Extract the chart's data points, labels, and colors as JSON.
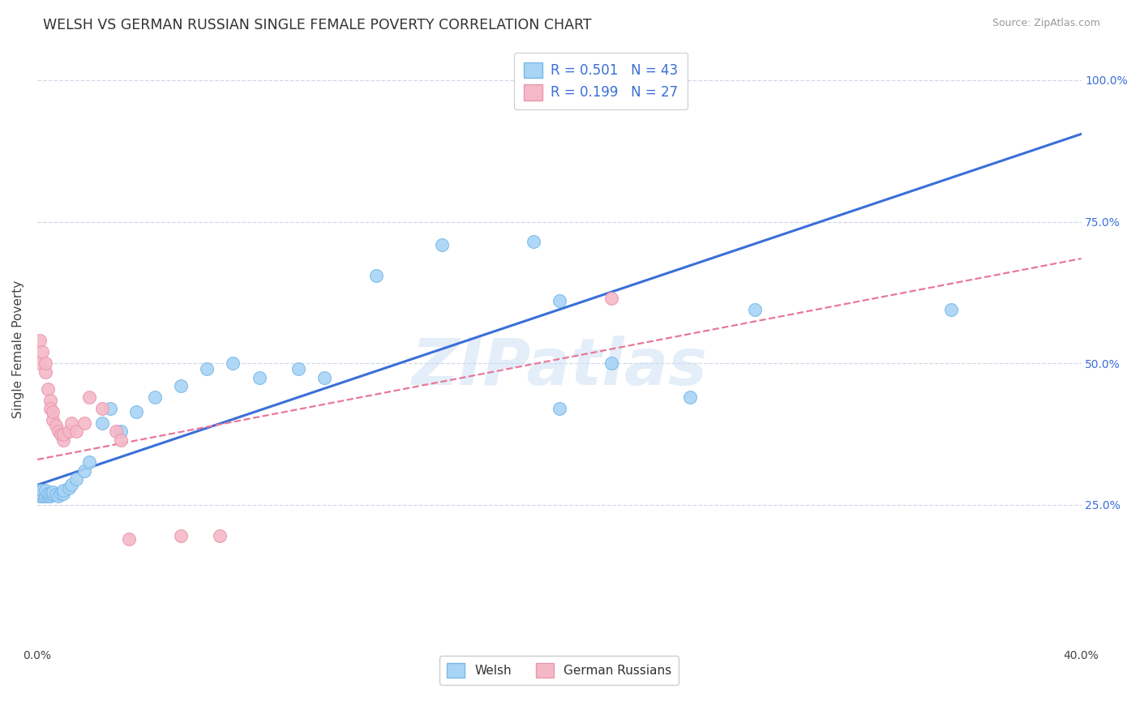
{
  "title": "WELSH VS GERMAN RUSSIAN SINGLE FEMALE POVERTY CORRELATION CHART",
  "source": "Source: ZipAtlas.com",
  "ylabel": "Single Female Poverty",
  "watermark": "ZIPatlas",
  "welsh_color": "#a8d4f5",
  "german_color": "#f5b8c8",
  "welsh_line_color": "#3a6fd8",
  "german_line_color": "#e87898",
  "R_welsh": 0.501,
  "N_welsh": 43,
  "R_german": 0.199,
  "N_german": 27,
  "xlim": [
    0.0,
    0.4
  ],
  "ylim": [
    0.0,
    1.05
  ],
  "bg_color": "#ffffff",
  "grid_color": "#d0d8e8",
  "welsh_x": [
    0.001,
    0.001,
    0.002,
    0.002,
    0.002,
    0.003,
    0.003,
    0.004,
    0.004,
    0.005,
    0.005,
    0.006,
    0.006,
    0.007,
    0.008,
    0.009,
    0.01,
    0.01,
    0.012,
    0.013,
    0.015,
    0.018,
    0.02,
    0.025,
    0.028,
    0.032,
    0.038,
    0.045,
    0.055,
    0.065,
    0.075,
    0.085,
    0.1,
    0.11,
    0.13,
    0.155,
    0.19,
    0.2,
    0.22,
    0.25,
    0.275,
    0.2,
    0.35
  ],
  "welsh_y": [
    0.265,
    0.275,
    0.265,
    0.27,
    0.275,
    0.265,
    0.275,
    0.265,
    0.27,
    0.265,
    0.27,
    0.268,
    0.272,
    0.268,
    0.265,
    0.27,
    0.27,
    0.275,
    0.28,
    0.285,
    0.295,
    0.31,
    0.325,
    0.395,
    0.42,
    0.38,
    0.415,
    0.44,
    0.46,
    0.49,
    0.5,
    0.475,
    0.49,
    0.475,
    0.655,
    0.71,
    0.715,
    0.61,
    0.5,
    0.44,
    0.595,
    0.42,
    0.595
  ],
  "german_x": [
    0.001,
    0.001,
    0.002,
    0.003,
    0.003,
    0.004,
    0.005,
    0.005,
    0.006,
    0.006,
    0.007,
    0.008,
    0.009,
    0.01,
    0.01,
    0.012,
    0.013,
    0.015,
    0.018,
    0.02,
    0.025,
    0.03,
    0.032,
    0.035,
    0.055,
    0.07,
    0.22
  ],
  "german_y": [
    0.54,
    0.5,
    0.52,
    0.485,
    0.5,
    0.455,
    0.435,
    0.42,
    0.4,
    0.415,
    0.39,
    0.38,
    0.375,
    0.365,
    0.375,
    0.38,
    0.395,
    0.38,
    0.395,
    0.44,
    0.42,
    0.38,
    0.365,
    0.19,
    0.195,
    0.195,
    0.615
  ],
  "blue_line_x0": 0.0,
  "blue_line_y0": 0.285,
  "blue_line_x1": 0.4,
  "blue_line_y1": 0.905,
  "pink_line_x0": 0.0,
  "pink_line_y0": 0.33,
  "pink_line_x1": 0.4,
  "pink_line_y1": 0.685
}
